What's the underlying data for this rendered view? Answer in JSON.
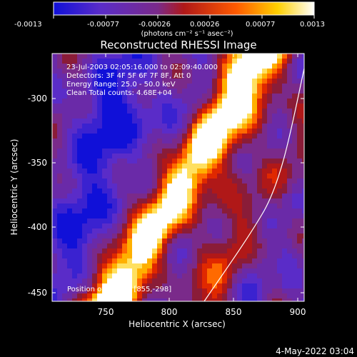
{
  "colorbar": {
    "tick_labels": [
      "-0.0013",
      "-0.00077",
      "-0.00026",
      "0.00026",
      "0.00077",
      "0.0013"
    ],
    "units_label": "(photons cm⁻² s⁻¹ asec⁻²)",
    "colors": [
      "#1010d8",
      "#5a2cc8",
      "#7a2a8a",
      "#b01818",
      "#ff5a00",
      "#ffd000",
      "#ffffff"
    ]
  },
  "plot": {
    "title": "Reconstructed RHESSI Image",
    "xlabel": "Heliocentric X (arcsec)",
    "ylabel": "Heliocentric Y (arcsec)",
    "x_ticks": [
      "750",
      "800",
      "850",
      "900"
    ],
    "y_ticks": [
      "-300",
      "-350",
      "-400",
      "-450"
    ],
    "annotations": {
      "time_range": "23-Jul-2003 02:05:16.000 to 02:09:40.000",
      "detectors": "Detectors: 3F 4F 5F 6F 7F 8F, Att 0",
      "energy": "Energy Range: 25.0 - 50.0 keV",
      "clean": "Clean    Total counts: 4.68E+04",
      "peak": "Position of Peak = [855,-298]"
    },
    "limb_line": "white solar limb line"
  },
  "footer": {
    "date": "4-May-2022 03:04"
  },
  "chart_data": {
    "type": "heatmap",
    "title": "Reconstructed RHESSI Image",
    "xlabel": "Heliocentric X (arcsec)",
    "ylabel": "Heliocentric Y (arcsec)",
    "xlim": [
      710,
      902
    ],
    "ylim": [
      -462,
      -270
    ],
    "colorbar_range": [
      -0.0013,
      0.0013
    ],
    "peak": [
      855,
      -298
    ]
  }
}
